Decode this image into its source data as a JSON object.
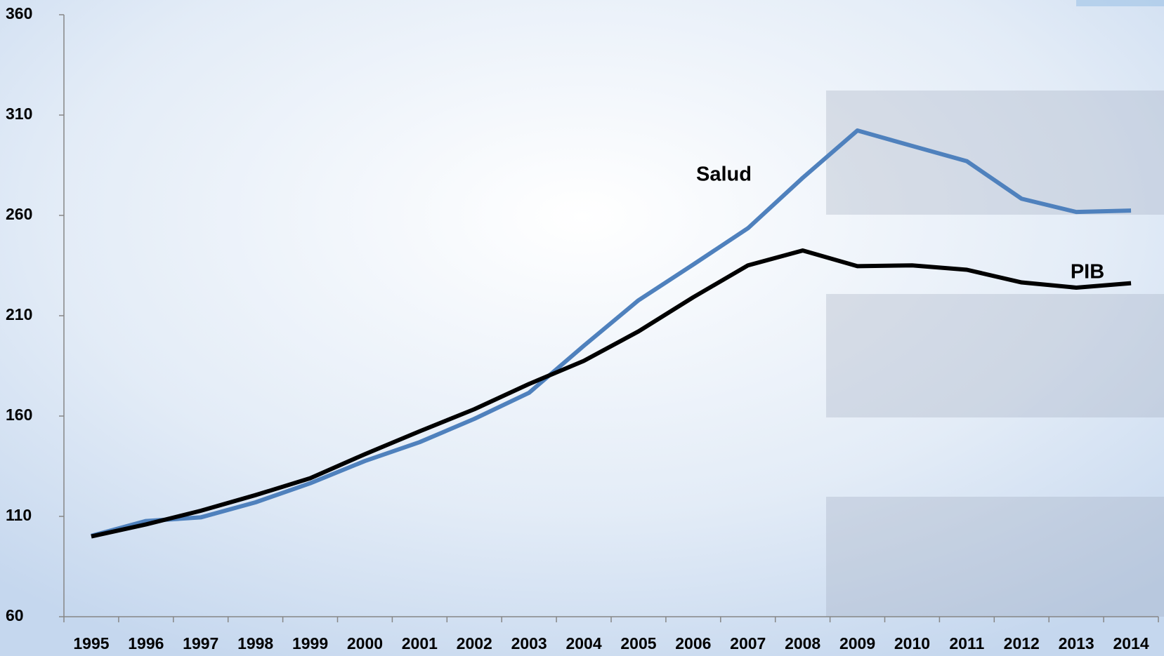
{
  "chart_data": {
    "type": "line",
    "categories": [
      "1995",
      "1996",
      "1997",
      "1998",
      "1999",
      "2000",
      "2001",
      "2002",
      "2003",
      "2004",
      "2005",
      "2006",
      "2007",
      "2008",
      "2009",
      "2010",
      "2011",
      "2012",
      "2013",
      "2014"
    ],
    "series": [
      {
        "name": "Salud",
        "color": "#4f81bd",
        "values": [
          100.3,
          107.7,
          109.5,
          117,
          126.5,
          137.6,
          147,
          158.6,
          171.6,
          195,
          217.7,
          235.5,
          253.6,
          278.7,
          302.3,
          294.6,
          287,
          268.3,
          261.7,
          262.4
        ]
      },
      {
        "name": "PIB",
        "color": "#000000",
        "values": [
          100,
          106,
          112.8,
          120.6,
          129,
          141,
          152.4,
          163.4,
          176,
          187.5,
          202.2,
          219.2,
          235.1,
          242.5,
          234.7,
          235.1,
          232.9,
          226.6,
          224,
          226.2
        ]
      }
    ],
    "ylim": [
      60,
      360
    ],
    "yticks": [
      60,
      110,
      160,
      210,
      260,
      310,
      360
    ],
    "grid": false
  }
}
